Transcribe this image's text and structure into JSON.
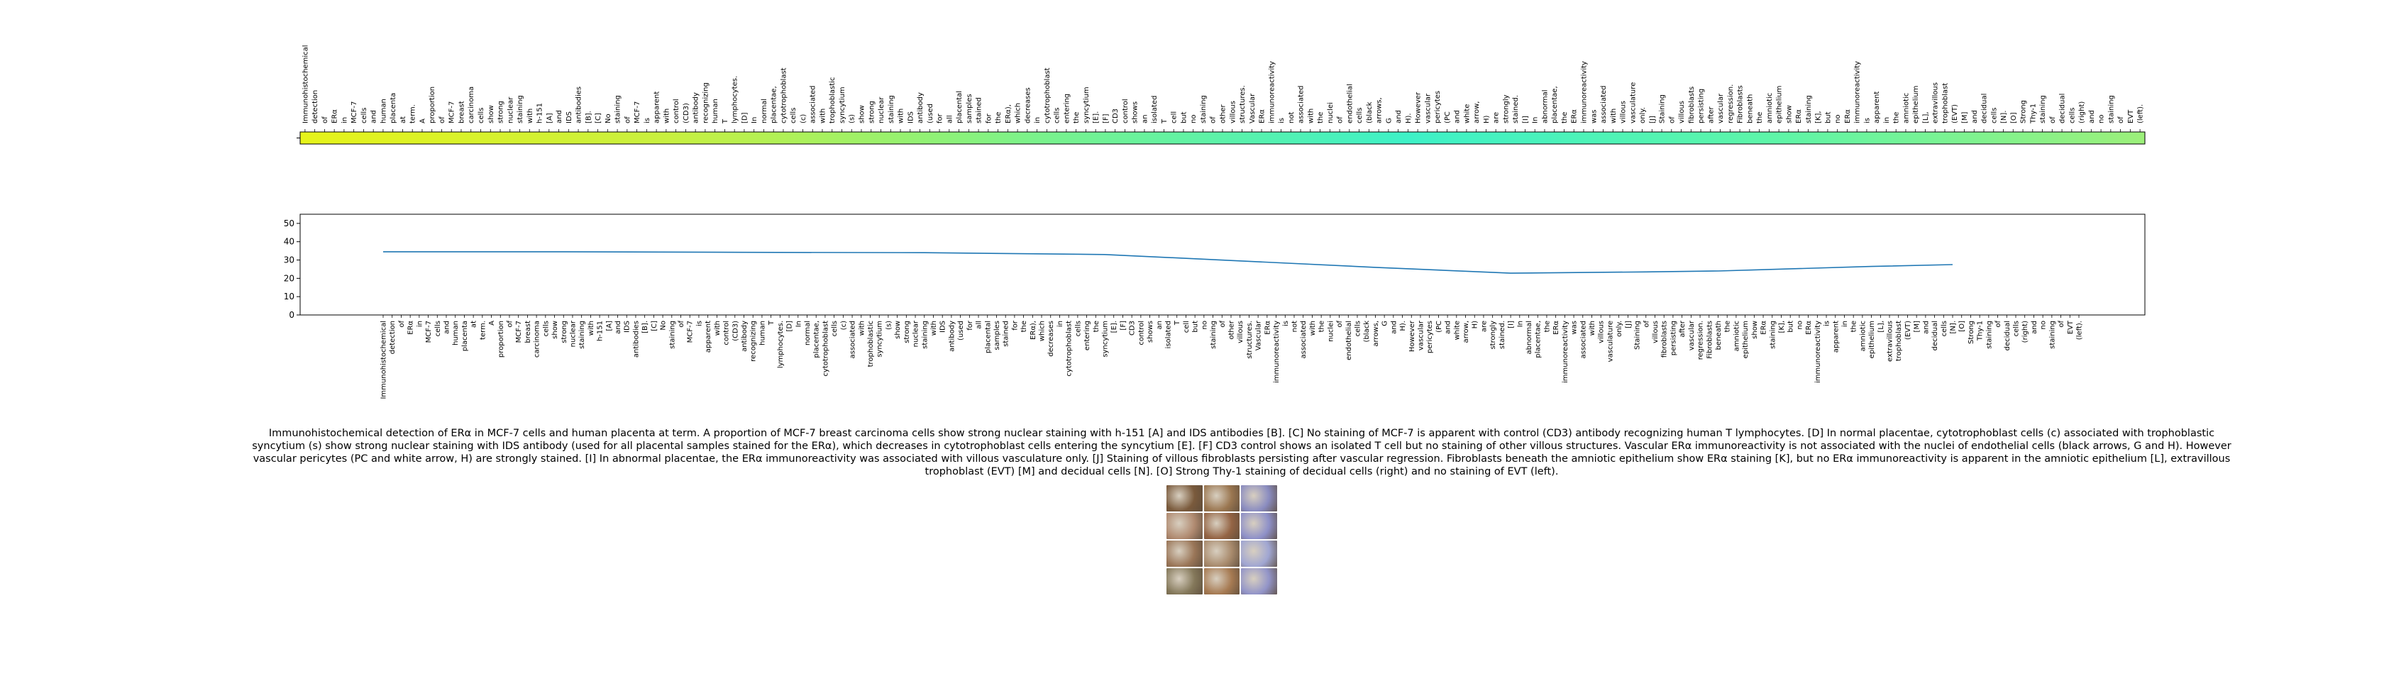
{
  "caption": "Immunohistochemical detection of ERα in MCF-7 cells and human placenta at term. A proportion of MCF-7 breast carcinoma cells show strong nuclear staining with h-151 [A] and IDS antibodies [B]. [C] No staining of MCF-7 is apparent with control (CD3) antibody recognizing human T lymphocytes. [D] In normal placentae, cytotrophoblast cells (c) associated with trophoblastic syncytium (s) show strong nuclear staining with IDS antibody (used for all placental samples stained for the ERα), which decreases in cytotrophoblast cells entering the syncytium [E]. [F] CD3 control shows an isolated T cell but no staining of other villous structures. Vascular ERα immunoreactivity is not associated with the nuclei of endothelial cells (black arrows, G and H). However vascular pericytes (PC and white arrow, H) are strongly stained. [I] In abnormal placentae, the ERα immunoreactivity was associated with villous vasculature only. [J] Staining of villous fibroblasts persisting after vascular regression. Fibroblasts beneath the amniotic epithelium show ERα staining [K], but no ERα immunoreactivity is apparent in the amniotic epithelium [L], extravillous trophoblast (EVT) [M] and decidual cells [N]. [O] Strong Thy-1 staining of decidual cells (right) and no staining of EVT (left).",
  "colors": {
    "line": "#1f77b4",
    "heat_stops": [
      "#e6f31a",
      "#c8f040",
      "#7af28c",
      "#3ef1c7",
      "#5ef5a8",
      "#9cf07a"
    ]
  },
  "thumbnail": {
    "cells": [
      "#7a5a3c",
      "#9a7650",
      "#8a8cc0",
      "#b08a70",
      "#946444",
      "#8e90c8",
      "#9a7658",
      "#a88a6c",
      "#a0a6d2",
      "#84785a",
      "#a67a52",
      "#9294c8"
    ]
  },
  "chart_data": {
    "type": "line",
    "title": "",
    "xlabel": "",
    "ylabel": "",
    "ylim": [
      0,
      55
    ],
    "yticks": [
      0,
      10,
      20,
      30,
      40,
      50
    ],
    "grid": false,
    "legend": "none",
    "tokens": [
      "Immunohistochemical",
      "detection",
      "of",
      "ERα",
      "in",
      "MCF-7",
      "cells",
      "and",
      "human",
      "placenta",
      "at",
      "term.",
      "A",
      "proportion",
      "of",
      "MCF-7",
      "breast",
      "carcinoma",
      "cells",
      "show",
      "strong",
      "nuclear",
      "staining",
      "with",
      "h-151",
      "[A]",
      "and",
      "IDS",
      "antibodies",
      "[B].",
      "[C]",
      "No",
      "staining",
      "of",
      "MCF-7",
      "is",
      "apparent",
      "with",
      "control",
      "(CD3)",
      "antibody",
      "recognizing",
      "human",
      "T",
      "lymphocytes.",
      "[D]",
      "In",
      "normal",
      "placentae,",
      "cytotrophoblast",
      "cells",
      "(c)",
      "associated",
      "with",
      "trophoblastic",
      "syncytium",
      "(s)",
      "show",
      "strong",
      "nuclear",
      "staining",
      "with",
      "IDS",
      "antibody",
      "(used",
      "for",
      "all",
      "placental",
      "samples",
      "stained",
      "for",
      "the",
      "ERα),",
      "which",
      "decreases",
      "in",
      "cytotrophoblast",
      "cells",
      "entering",
      "the",
      "syncytium",
      "[E].",
      "[F]",
      "CD3",
      "control",
      "shows",
      "an",
      "isolated",
      "T",
      "cell",
      "but",
      "no",
      "staining",
      "of",
      "other",
      "villous",
      "structures.",
      "Vascular",
      "ERα",
      "immunoreactivity",
      "is",
      "not",
      "associated",
      "with",
      "the",
      "nuclei",
      "of",
      "endothelial",
      "cells",
      "(black",
      "arrows,",
      "G",
      "and",
      "H).",
      "However",
      "vascular",
      "pericytes",
      "(PC",
      "and",
      "white",
      "arrow,",
      "H)",
      "are",
      "strongly",
      "stained.",
      "[I]",
      "In",
      "abnormal",
      "placentae,",
      "the",
      "ERα",
      "immunoreactivity",
      "was",
      "associated",
      "with",
      "villous",
      "vasculature",
      "only.",
      "[J]",
      "Staining",
      "of",
      "villous",
      "fibroblasts",
      "persisting",
      "after",
      "vascular",
      "regression.",
      "Fibroblasts",
      "beneath",
      "the",
      "amniotic",
      "epithelium",
      "show",
      "ERα",
      "staining",
      "[K],",
      "but",
      "no",
      "ERα",
      "immunoreactivity",
      "is",
      "apparent",
      "in",
      "the",
      "amniotic",
      "epithelium",
      "[L],",
      "extravillous",
      "trophoblast",
      "(EVT)",
      "[M]",
      "and",
      "decidual",
      "cells",
      "[N].",
      "[O]",
      "Strong",
      "Thy-1",
      "staining",
      "of",
      "decidual",
      "cells",
      "(right)",
      "and",
      "no",
      "staining",
      "of",
      "EVT",
      "(left)."
    ],
    "series": [
      {
        "x": [
          0,
          20,
          40,
          60,
          80,
          95,
          110,
          125,
          140,
          148,
          165,
          174
        ],
        "y": [
          34.5,
          34.5,
          34.2,
          34.0,
          33.0,
          29.5,
          26.0,
          22.8,
          23.5,
          24.0,
          26.5,
          27.5
        ]
      }
    ]
  }
}
